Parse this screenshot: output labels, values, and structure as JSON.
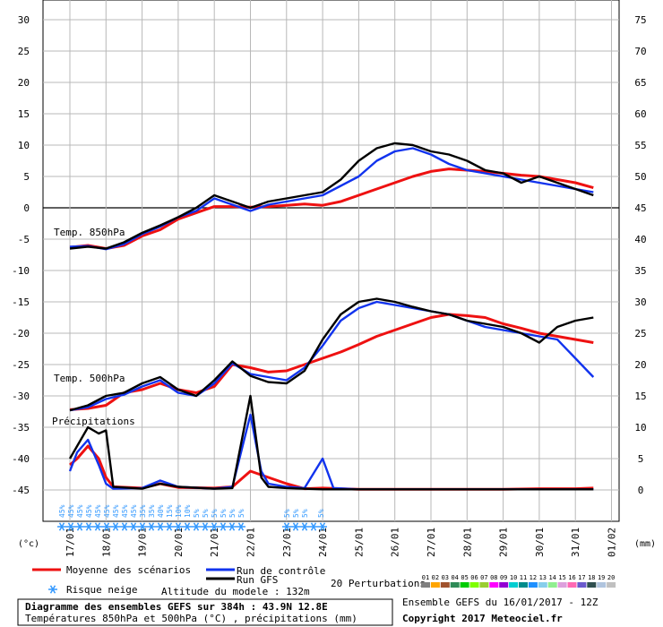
{
  "chart_data": {
    "type": "line",
    "left_axis": {
      "label": "(°c)",
      "ticks": [
        30,
        25,
        20,
        15,
        10,
        5,
        0,
        -5,
        -10,
        -15,
        -20,
        -25,
        -30,
        -35,
        -40,
        -45
      ],
      "ylim": [
        -45,
        30
      ]
    },
    "right_axis": {
      "label": "(mm)",
      "ticks": [
        75,
        70,
        65,
        60,
        55,
        50,
        45,
        40,
        35,
        30,
        25,
        20,
        15,
        10,
        5,
        0
      ],
      "ylim": [
        0,
        75
      ]
    },
    "x_ticks": [
      "17/01",
      "18/01",
      "19/01",
      "20/01",
      "21/01",
      "22/01",
      "23/01",
      "24/01",
      "25/01",
      "26/01",
      "27/01",
      "28/01",
      "29/01",
      "30/01",
      "31/01",
      "01/02"
    ],
    "panel_labels": {
      "t850": "Temp. 850hPa",
      "t500": "Temp. 500hPa",
      "precip": "Précipitations"
    },
    "snow_risk_labels": [
      "45%",
      "45%",
      "45%",
      "45%",
      "45%",
      "45%",
      "45%",
      "45%",
      "45%",
      "35%",
      "35%",
      "40%",
      "15%",
      "10%",
      "10%",
      "5%",
      "5%",
      "5%",
      "5%",
      "5%",
      "5%"
    ],
    "snow_risk_labels_2": [
      "5%",
      "5%",
      "5%",
      "5%"
    ],
    "series": [
      {
        "name": "Moyenne des scénarios",
        "color": "#ee1111",
        "t850": [
          [
            0,
            -6.3
          ],
          [
            0.5,
            -6.0
          ],
          [
            1,
            -6.5
          ],
          [
            1.5,
            -6.0
          ],
          [
            2,
            -4.5
          ],
          [
            2.5,
            -3.5
          ],
          [
            3,
            -1.8
          ],
          [
            3.5,
            -0.8
          ],
          [
            4,
            0.2
          ],
          [
            4.5,
            0.2
          ],
          [
            5,
            0.1
          ],
          [
            5.5,
            0.2
          ],
          [
            6,
            0.4
          ],
          [
            6.5,
            0.6
          ],
          [
            7,
            0.4
          ],
          [
            7.5,
            1.0
          ],
          [
            8,
            2.0
          ],
          [
            8.5,
            3.0
          ],
          [
            9,
            4.0
          ],
          [
            9.5,
            5.0
          ],
          [
            10,
            5.8
          ],
          [
            10.5,
            6.2
          ],
          [
            11,
            6.0
          ],
          [
            11.5,
            5.8
          ],
          [
            12,
            5.5
          ],
          [
            12.5,
            5.2
          ],
          [
            13,
            5.0
          ],
          [
            13.5,
            4.5
          ],
          [
            14,
            4.0
          ],
          [
            14.5,
            3.2
          ]
        ],
        "t500": [
          [
            0,
            -32.2
          ],
          [
            0.5,
            -32.0
          ],
          [
            1,
            -31.5
          ],
          [
            1.5,
            -29.5
          ],
          [
            2,
            -29.0
          ],
          [
            2.5,
            -28.0
          ],
          [
            3,
            -29.0
          ],
          [
            3.5,
            -29.5
          ],
          [
            4,
            -28.5
          ],
          [
            4.5,
            -25.0
          ],
          [
            5,
            -25.5
          ],
          [
            5.5,
            -26.2
          ],
          [
            6,
            -26.0
          ],
          [
            6.5,
            -25.0
          ],
          [
            7,
            -24.0
          ],
          [
            7.5,
            -23.0
          ],
          [
            8,
            -21.8
          ],
          [
            8.5,
            -20.5
          ],
          [
            9,
            -19.5
          ],
          [
            9.5,
            -18.5
          ],
          [
            10,
            -17.5
          ],
          [
            10.5,
            -17.0
          ],
          [
            11,
            -17.2
          ],
          [
            11.5,
            -17.5
          ],
          [
            12,
            -18.5
          ],
          [
            12.5,
            -19.2
          ],
          [
            13,
            -20.0
          ],
          [
            13.5,
            -20.5
          ],
          [
            14,
            -21.0
          ],
          [
            14.5,
            -21.5
          ]
        ],
        "precip": [
          [
            0,
            4
          ],
          [
            0.2,
            5
          ],
          [
            0.5,
            7
          ],
          [
            0.8,
            5
          ],
          [
            1,
            2
          ],
          [
            1.2,
            0.5
          ],
          [
            2,
            0.3
          ],
          [
            2.5,
            1
          ],
          [
            3,
            0.4
          ],
          [
            4,
            0.3
          ],
          [
            4.5,
            0.5
          ],
          [
            5,
            3
          ],
          [
            5.5,
            2
          ],
          [
            6,
            1
          ],
          [
            6.5,
            0.2
          ],
          [
            7,
            0.3
          ],
          [
            8,
            0.1
          ],
          [
            9,
            0.1
          ],
          [
            10,
            0.1
          ],
          [
            11,
            0.1
          ],
          [
            12,
            0.1
          ],
          [
            13,
            0.2
          ],
          [
            14,
            0.2
          ],
          [
            14.5,
            0.3
          ]
        ]
      },
      {
        "name": "Run de contrôle",
        "color": "#1133ee",
        "t850": [
          [
            0,
            -6.2
          ],
          [
            0.5,
            -6.1
          ],
          [
            1,
            -6.6
          ],
          [
            1.5,
            -5.8
          ],
          [
            2,
            -4.2
          ],
          [
            2.5,
            -3.0
          ],
          [
            3,
            -1.5
          ],
          [
            3.5,
            -0.5
          ],
          [
            4,
            1.5
          ],
          [
            4.5,
            0.5
          ],
          [
            5,
            -0.5
          ],
          [
            5.5,
            0.5
          ],
          [
            6,
            1.0
          ],
          [
            6.5,
            1.5
          ],
          [
            7,
            2.0
          ],
          [
            7.5,
            3.5
          ],
          [
            8,
            5.0
          ],
          [
            8.5,
            7.5
          ],
          [
            9,
            9.0
          ],
          [
            9.5,
            9.5
          ],
          [
            10,
            8.5
          ],
          [
            10.5,
            7.0
          ],
          [
            11,
            6.0
          ],
          [
            11.5,
            5.5
          ],
          [
            12,
            5.0
          ],
          [
            12.5,
            4.5
          ],
          [
            13,
            4.0
          ],
          [
            13.5,
            3.5
          ],
          [
            14,
            3.0
          ],
          [
            14.5,
            2.5
          ]
        ],
        "t500": [
          [
            0,
            -32.3
          ],
          [
            0.5,
            -31.8
          ],
          [
            1,
            -30.5
          ],
          [
            1.5,
            -29.8
          ],
          [
            2,
            -28.5
          ],
          [
            2.5,
            -27.5
          ],
          [
            3,
            -29.5
          ],
          [
            3.5,
            -30.0
          ],
          [
            4,
            -28.0
          ],
          [
            4.5,
            -24.8
          ],
          [
            5,
            -26.5
          ],
          [
            5.5,
            -27.0
          ],
          [
            6,
            -27.5
          ],
          [
            6.5,
            -25.5
          ],
          [
            7,
            -22.0
          ],
          [
            7.5,
            -18.0
          ],
          [
            8,
            -16.0
          ],
          [
            8.5,
            -15.0
          ],
          [
            9,
            -15.5
          ],
          [
            9.5,
            -16.0
          ],
          [
            10,
            -16.5
          ],
          [
            10.5,
            -17.0
          ],
          [
            11,
            -18.0
          ],
          [
            11.5,
            -19.0
          ],
          [
            12,
            -19.5
          ],
          [
            12.5,
            -20.0
          ],
          [
            13,
            -20.5
          ],
          [
            13.5,
            -21.0
          ],
          [
            14,
            -24.0
          ],
          [
            14.5,
            -27.0
          ]
        ],
        "precip": [
          [
            0,
            3
          ],
          [
            0.2,
            6
          ],
          [
            0.5,
            8
          ],
          [
            0.8,
            4
          ],
          [
            1,
            1
          ],
          [
            1.2,
            0.2
          ],
          [
            2,
            0.3
          ],
          [
            2.5,
            1.5
          ],
          [
            3,
            0.5
          ],
          [
            4,
            0.2
          ],
          [
            4.5,
            0.5
          ],
          [
            5,
            12
          ],
          [
            5.3,
            3
          ],
          [
            5.5,
            1
          ],
          [
            6,
            0.5
          ],
          [
            6.5,
            0.3
          ],
          [
            7,
            5
          ],
          [
            7.3,
            0.3
          ],
          [
            8,
            0.1
          ],
          [
            14.5,
            0.1
          ]
        ]
      },
      {
        "name": "Run GFS",
        "color": "#000000",
        "t850": [
          [
            0,
            -6.5
          ],
          [
            0.5,
            -6.2
          ],
          [
            1,
            -6.5
          ],
          [
            1.5,
            -5.5
          ],
          [
            2,
            -4.0
          ],
          [
            2.5,
            -2.8
          ],
          [
            3,
            -1.5
          ],
          [
            3.5,
            0.0
          ],
          [
            4,
            2.0
          ],
          [
            4.5,
            1.0
          ],
          [
            5,
            0.0
          ],
          [
            5.5,
            1.0
          ],
          [
            6,
            1.5
          ],
          [
            6.5,
            2.0
          ],
          [
            7,
            2.5
          ],
          [
            7.5,
            4.5
          ],
          [
            8,
            7.5
          ],
          [
            8.5,
            9.5
          ],
          [
            9,
            10.3
          ],
          [
            9.5,
            10.0
          ],
          [
            10,
            9.0
          ],
          [
            10.5,
            8.5
          ],
          [
            11,
            7.5
          ],
          [
            11.5,
            6.0
          ],
          [
            12,
            5.5
          ],
          [
            12.5,
            4.0
          ],
          [
            13,
            5.0
          ],
          [
            13.5,
            4.0
          ],
          [
            14,
            3.0
          ],
          [
            14.5,
            2.0
          ]
        ],
        "t500": [
          [
            0,
            -32.3
          ],
          [
            0.5,
            -31.5
          ],
          [
            1,
            -30.0
          ],
          [
            1.5,
            -29.5
          ],
          [
            2,
            -28.0
          ],
          [
            2.5,
            -27.0
          ],
          [
            3,
            -29.0
          ],
          [
            3.5,
            -30.0
          ],
          [
            4,
            -27.5
          ],
          [
            4.5,
            -24.5
          ],
          [
            5,
            -26.8
          ],
          [
            5.5,
            -27.8
          ],
          [
            6,
            -28.0
          ],
          [
            6.5,
            -26.0
          ],
          [
            7,
            -21.0
          ],
          [
            7.5,
            -17.0
          ],
          [
            8,
            -15.0
          ],
          [
            8.5,
            -14.5
          ],
          [
            9,
            -15.0
          ],
          [
            9.5,
            -15.8
          ],
          [
            10,
            -16.5
          ],
          [
            10.5,
            -17.0
          ],
          [
            11,
            -18.0
          ],
          [
            11.5,
            -18.5
          ],
          [
            12,
            -19.0
          ],
          [
            12.5,
            -20.0
          ],
          [
            13,
            -21.5
          ],
          [
            13.5,
            -19.0
          ],
          [
            14,
            -18.0
          ],
          [
            14.5,
            -17.5
          ]
        ],
        "precip": [
          [
            0,
            5
          ],
          [
            0.2,
            7
          ],
          [
            0.5,
            10
          ],
          [
            0.8,
            9
          ],
          [
            1,
            9.5
          ],
          [
            1.2,
            0.5
          ],
          [
            2,
            0.2
          ],
          [
            2.5,
            1
          ],
          [
            3,
            0.5
          ],
          [
            4,
            0.2
          ],
          [
            4.5,
            0.3
          ],
          [
            5,
            15
          ],
          [
            5.3,
            2
          ],
          [
            5.5,
            0.5
          ],
          [
            6,
            0.3
          ],
          [
            7,
            0.1
          ],
          [
            14.5,
            0.1
          ]
        ]
      }
    ]
  },
  "legend": {
    "mean_label": "Moyenne des scénarios",
    "control_label": "Run de contrôle",
    "gfs_label": "Run GFS",
    "perturbations_label": "20 Perturbations",
    "perturbation_numbers": [
      "01",
      "02",
      "03",
      "04",
      "05",
      "06",
      "07",
      "08",
      "09",
      "10",
      "11",
      "12",
      "13",
      "14",
      "15",
      "16",
      "17",
      "18",
      "19",
      "20"
    ],
    "perturbation_colors": [
      "#808080",
      "#ffa500",
      "#a0522d",
      "#2e8b57",
      "#00cc00",
      "#7fff00",
      "#9acd32",
      "#ff00ff",
      "#9400d3",
      "#00ced1",
      "#008b8b",
      "#1e90ff",
      "#87ceeb",
      "#90ee90",
      "#dda0dd",
      "#ff69b4",
      "#6a5acd",
      "#2f4f4f",
      "#b0c4de",
      "#c0c0c0"
    ],
    "snow_label": "Risque neige",
    "altitude_text": "Altitude du modele : 132m"
  },
  "footer": {
    "title": "Diagramme des ensembles GEFS sur 384h : 43.9N 12.8E",
    "subtitle": "Températures 850hPa et 500hPa (°C) , précipitations (mm)",
    "run_info": "Ensemble GEFS du 16/01/2017 - 12Z",
    "copyright": "Copyright 2017 Meteociel.fr"
  }
}
